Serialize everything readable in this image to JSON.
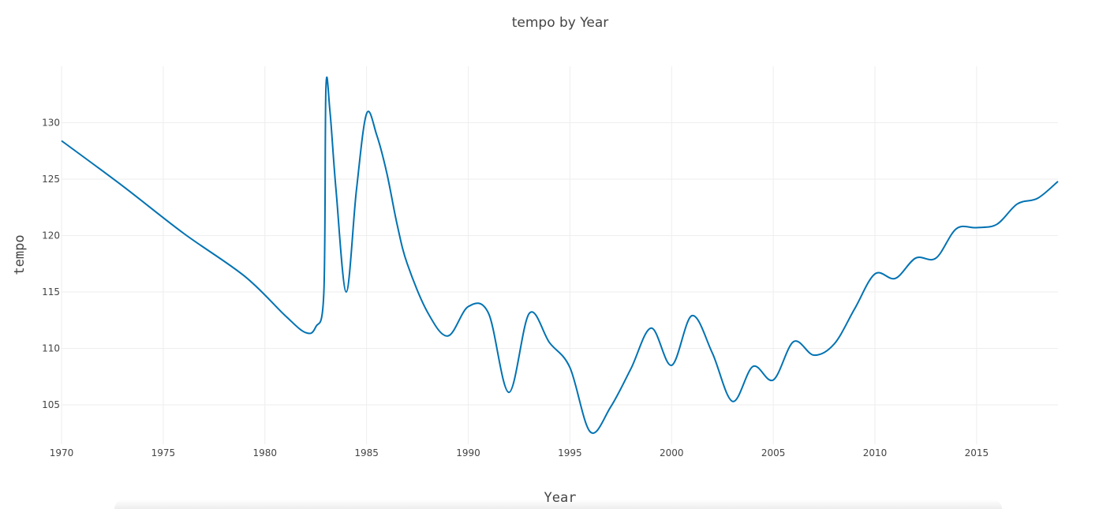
{
  "chart_data": {
    "type": "line",
    "title": "tempo by Year",
    "xlabel": "Year",
    "ylabel": "tempo",
    "xlim": [
      1970,
      2019
    ],
    "ylim": [
      101.5,
      135
    ],
    "xticks": [
      1970,
      1975,
      1980,
      1985,
      1990,
      1995,
      2000,
      2005,
      2010,
      2015
    ],
    "yticks": [
      105,
      110,
      115,
      120,
      125,
      130
    ],
    "grid": true,
    "colors": {
      "series": "#0072b2",
      "grid": "#eeeeee",
      "text": "#444444"
    },
    "series": [
      {
        "x": [
          1970,
          1973,
          1976,
          1979,
          1981,
          1982,
          1982.5,
          1982.9,
          1983,
          1983.2,
          1983.5,
          1984,
          1984.5,
          1985,
          1985.5,
          1986,
          1986.5,
          1987,
          1988,
          1989,
          1990,
          1991,
          1992,
          1993,
          1994,
          1995,
          1996,
          1997,
          1998,
          1999,
          2000,
          2001,
          2002,
          2003,
          2004,
          2005,
          2006,
          2007,
          2008,
          2009,
          2010,
          2011,
          2012,
          2013,
          2014,
          2015,
          2016,
          2017,
          2018,
          2019
        ],
        "y": [
          128.4,
          124.4,
          120.2,
          116.4,
          112.9,
          111.4,
          111.9,
          115,
          133,
          131,
          124,
          115,
          124,
          130.8,
          128.9,
          125.5,
          121,
          117.5,
          113.2,
          111.1,
          113.7,
          113.1,
          106.1,
          113.1,
          110.5,
          108.3,
          102.6,
          104.8,
          108.2,
          111.8,
          108.5,
          112.9,
          109.6,
          105.3,
          108.4,
          107.2,
          110.6,
          109.4,
          110.4,
          113.5,
          116.6,
          116.2,
          118,
          118,
          120.6,
          120.7,
          121,
          122.8,
          123.3,
          124.8
        ]
      }
    ]
  }
}
